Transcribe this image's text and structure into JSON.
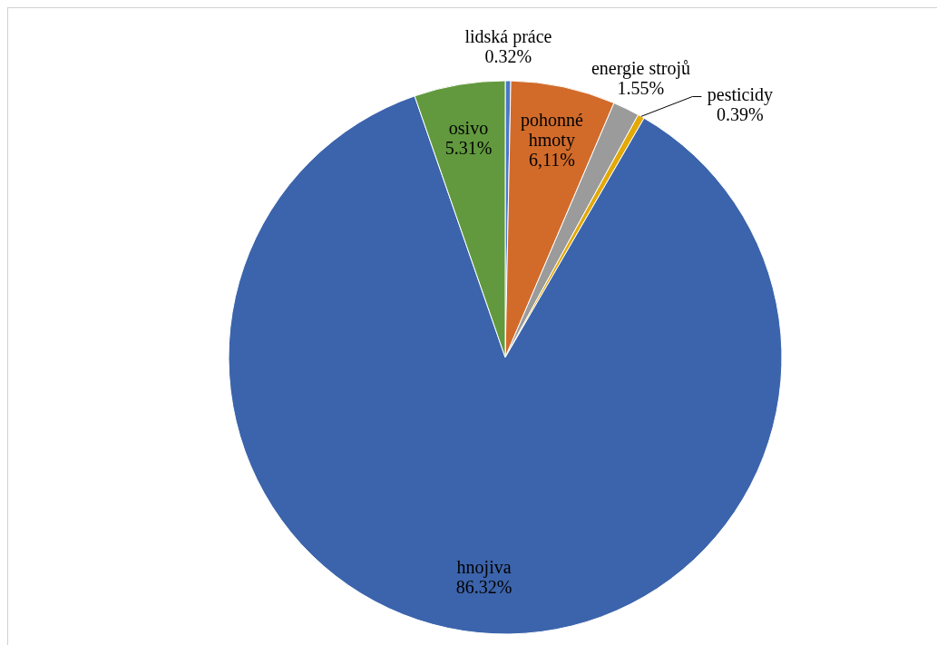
{
  "chart_data": {
    "type": "pie",
    "categories": [
      "lidská práce",
      "pohonné hmoty",
      "energie strojů",
      "pesticidy",
      "hnojiva",
      "osivo"
    ],
    "values": [
      0.32,
      6.11,
      1.55,
      0.39,
      86.32,
      5.31
    ],
    "value_labels": [
      "0.32%",
      "6,11%",
      "1.55%",
      "0.39%",
      "86.32%",
      "5.31%"
    ],
    "colors": [
      "#4a78c8",
      "#d26b2a",
      "#9b9b9b",
      "#e3a905",
      "#3c64ac",
      "#62993e"
    ]
  }
}
